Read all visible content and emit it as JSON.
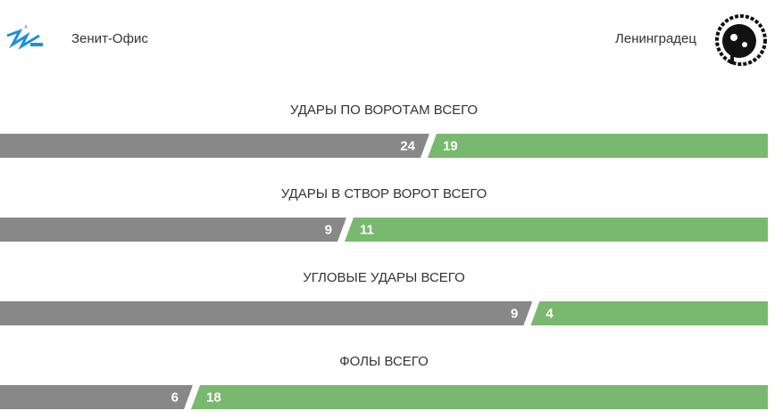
{
  "teams": {
    "home": "Зенит-Офис",
    "away": "Ленинградец"
  },
  "stats": [
    {
      "title": "УДАРЫ ПО ВОРОТАМ ВСЕГО",
      "home": 24,
      "away": 19
    },
    {
      "title": "УДАРЫ В СТВОР ВОРОТ ВСЕГО",
      "home": 9,
      "away": 11
    },
    {
      "title": "УГЛОВЫЕ УДАРЫ ВСЕГО",
      "home": 9,
      "away": 4
    },
    {
      "title": "ФОЛЫ ВСЕГО",
      "home": 6,
      "away": 18
    }
  ]
}
